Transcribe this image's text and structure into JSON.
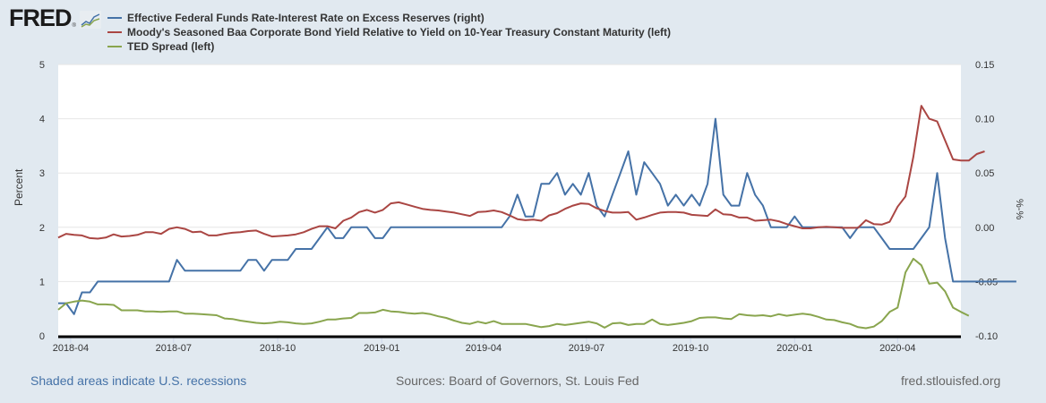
{
  "header": {
    "logo_text": "FRED",
    "logo_reg": "®"
  },
  "footer": {
    "recessions_note": "Shaded areas indicate U.S. recessions",
    "sources": "Sources: Board of Governors, St. Louis Fed",
    "site": "fred.stlouisfed.org"
  },
  "colors": {
    "background": "#e1e9f0",
    "plot_background": "#ffffff",
    "blue": "#4572a7",
    "red": "#aa4643",
    "green": "#89a54e",
    "link": "#4572a7",
    "muted_text": "#666666"
  },
  "chart_data": {
    "type": "line",
    "title": "",
    "legend_position": "top",
    "grid": true,
    "x_ticks": [
      "2018-04",
      "2018-07",
      "2018-10",
      "2019-01",
      "2019-04",
      "2019-07",
      "2019-10",
      "2020-01",
      "2020-04"
    ],
    "x_range": [
      "2018-03-21",
      "2020-05-27"
    ],
    "y_left": {
      "label": "Percent",
      "range": [
        0,
        5
      ],
      "ticks": [
        "0",
        "1",
        "2",
        "3",
        "4",
        "5"
      ]
    },
    "y_right": {
      "label": "%-%",
      "range": [
        -0.1,
        0.15
      ],
      "ticks": [
        "-0.10",
        "-0.05",
        "0.00",
        "0.05",
        "0.10",
        "0.15"
      ]
    },
    "series": [
      {
        "name": "Effective Federal Funds Rate-Interest Rate on Excess Reserves (right)",
        "axis": "right",
        "color": "#4572a7",
        "values": [
          -0.07,
          -0.07,
          -0.08,
          -0.06,
          -0.06,
          -0.05,
          -0.05,
          -0.05,
          -0.05,
          -0.05,
          -0.05,
          -0.05,
          -0.05,
          -0.05,
          -0.05,
          -0.03,
          -0.04,
          -0.04,
          -0.04,
          -0.04,
          -0.04,
          -0.04,
          -0.04,
          -0.04,
          -0.03,
          -0.03,
          -0.04,
          -0.03,
          -0.03,
          -0.03,
          -0.02,
          -0.02,
          -0.02,
          -0.01,
          0.0,
          -0.01,
          -0.01,
          0.0,
          0.0,
          0.0,
          -0.01,
          -0.01,
          0.0,
          0.0,
          0.0,
          0.0,
          0.0,
          0.0,
          0.0,
          0.0,
          0.0,
          0.0,
          0.0,
          0.0,
          0.0,
          0.0,
          0.0,
          0.01,
          0.03,
          0.01,
          0.01,
          0.04,
          0.04,
          0.05,
          0.03,
          0.04,
          0.03,
          0.05,
          0.02,
          0.01,
          0.03,
          0.05,
          0.07,
          0.03,
          0.06,
          0.05,
          0.04,
          0.02,
          0.03,
          0.02,
          0.03,
          0.02,
          0.04,
          0.1,
          0.03,
          0.02,
          0.02,
          0.05,
          0.03,
          0.02,
          0.0,
          0.0,
          0.0,
          0.01,
          0.0,
          0.0,
          0.0,
          0.0,
          0.0,
          0.0,
          -0.01,
          0.0,
          0.0,
          0.0,
          -0.01,
          -0.02,
          -0.02,
          -0.02,
          -0.02,
          -0.01,
          0.0,
          0.05,
          -0.01,
          -0.05,
          -0.05,
          -0.05,
          -0.05,
          -0.05,
          -0.05,
          -0.05,
          -0.05,
          -0.05
        ]
      },
      {
        "name": "Moody's Seasoned Baa Corporate Bond Yield Relative to Yield on 10-Year Treasury Constant Maturity (left)",
        "axis": "left",
        "color": "#aa4643",
        "values": [
          1.81,
          1.88,
          1.86,
          1.85,
          1.8,
          1.79,
          1.81,
          1.87,
          1.83,
          1.84,
          1.86,
          1.91,
          1.91,
          1.88,
          1.97,
          2.0,
          1.97,
          1.91,
          1.92,
          1.85,
          1.85,
          1.88,
          1.9,
          1.91,
          1.93,
          1.94,
          1.88,
          1.83,
          1.84,
          1.85,
          1.87,
          1.91,
          1.97,
          2.02,
          2.02,
          1.98,
          2.12,
          2.18,
          2.28,
          2.32,
          2.27,
          2.32,
          2.44,
          2.46,
          2.42,
          2.38,
          2.34,
          2.32,
          2.31,
          2.29,
          2.27,
          2.24,
          2.21,
          2.28,
          2.29,
          2.31,
          2.28,
          2.22,
          2.15,
          2.13,
          2.14,
          2.12,
          2.22,
          2.26,
          2.34,
          2.4,
          2.44,
          2.43,
          2.35,
          2.3,
          2.27,
          2.27,
          2.28,
          2.14,
          2.18,
          2.23,
          2.27,
          2.28,
          2.28,
          2.27,
          2.23,
          2.22,
          2.21,
          2.33,
          2.24,
          2.23,
          2.18,
          2.18,
          2.12,
          2.13,
          2.14,
          2.11,
          2.06,
          2.02,
          1.98,
          1.98,
          2.0,
          2.01,
          2.0,
          1.99,
          1.99,
          1.99,
          2.13,
          2.06,
          2.05,
          2.1,
          2.38,
          2.57,
          3.3,
          4.24,
          4.0,
          3.95,
          3.6,
          3.25,
          3.23,
          3.23,
          3.35,
          3.4
        ]
      },
      {
        "name": "TED Spread (left)",
        "axis": "left",
        "color": "#89a54e",
        "values": [
          0.48,
          0.6,
          0.63,
          0.65,
          0.63,
          0.58,
          0.58,
          0.57,
          0.47,
          0.47,
          0.47,
          0.45,
          0.45,
          0.44,
          0.45,
          0.45,
          0.41,
          0.41,
          0.4,
          0.39,
          0.38,
          0.32,
          0.31,
          0.28,
          0.26,
          0.24,
          0.23,
          0.24,
          0.26,
          0.25,
          0.23,
          0.22,
          0.23,
          0.26,
          0.3,
          0.3,
          0.32,
          0.33,
          0.42,
          0.42,
          0.43,
          0.48,
          0.45,
          0.44,
          0.42,
          0.41,
          0.42,
          0.4,
          0.36,
          0.33,
          0.28,
          0.24,
          0.22,
          0.26,
          0.23,
          0.27,
          0.22,
          0.22,
          0.22,
          0.22,
          0.19,
          0.16,
          0.18,
          0.22,
          0.2,
          0.22,
          0.24,
          0.26,
          0.23,
          0.15,
          0.23,
          0.24,
          0.2,
          0.22,
          0.22,
          0.3,
          0.22,
          0.2,
          0.22,
          0.24,
          0.27,
          0.33,
          0.34,
          0.34,
          0.32,
          0.31,
          0.4,
          0.38,
          0.37,
          0.38,
          0.36,
          0.4,
          0.37,
          0.39,
          0.41,
          0.39,
          0.35,
          0.3,
          0.29,
          0.25,
          0.22,
          0.16,
          0.14,
          0.17,
          0.27,
          0.44,
          0.52,
          1.17,
          1.42,
          1.3,
          0.96,
          0.98,
          0.82,
          0.52,
          0.44,
          0.37
        ]
      }
    ]
  }
}
